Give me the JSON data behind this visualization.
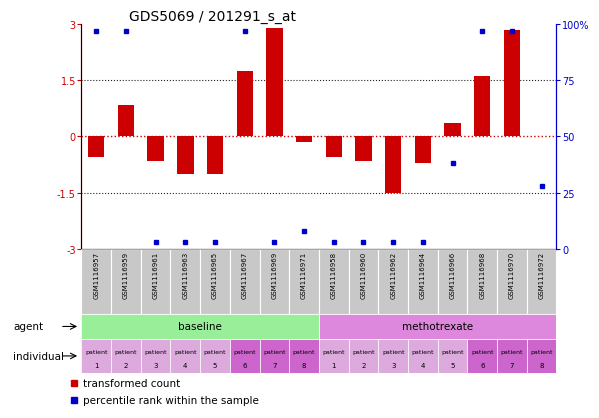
{
  "title": "GDS5069 / 201291_s_at",
  "samples": [
    "GSM1116957",
    "GSM1116959",
    "GSM1116961",
    "GSM1116963",
    "GSM1116965",
    "GSM1116967",
    "GSM1116969",
    "GSM1116971",
    "GSM1116958",
    "GSM1116960",
    "GSM1116962",
    "GSM1116964",
    "GSM1116966",
    "GSM1116968",
    "GSM1116970",
    "GSM1116972"
  ],
  "bar_values": [
    -0.55,
    0.85,
    -0.65,
    -1.0,
    -1.0,
    1.75,
    2.9,
    -0.15,
    -0.55,
    -0.65,
    -1.5,
    -0.7,
    0.35,
    1.6,
    2.85,
    0.0
  ],
  "dot_values": [
    97,
    97,
    3,
    3,
    3,
    97,
    3,
    8,
    3,
    3,
    3,
    3,
    38,
    97,
    97,
    28
  ],
  "ylim_left": [
    -3,
    3
  ],
  "ylim_right": [
    0,
    100
  ],
  "yticks_left": [
    -3,
    -1.5,
    0,
    1.5,
    3
  ],
  "yticks_right": [
    0,
    25,
    50,
    75,
    100
  ],
  "bar_color": "#cc0000",
  "dot_color": "#0000cc",
  "zero_hline_color": "#cc0000",
  "other_hline_color": "#222222",
  "baseline_color": "#99ee99",
  "methotrexate_color": "#dd88dd",
  "sample_bg_color": "#c8c8c8",
  "patient_color_light": "#ddaadd",
  "patient_color_dark": "#cc66cc",
  "agent_label": "agent",
  "individual_label": "individual",
  "legend_bar_label": "transformed count",
  "legend_dot_label": "percentile rank within the sample",
  "n_baseline": 8,
  "n_methotrexate": 8,
  "bar_width": 0.55,
  "title_fontsize": 10,
  "tick_fontsize": 7,
  "label_fontsize": 7.5,
  "sample_fontsize": 5,
  "patient_fontsize": 4.5
}
